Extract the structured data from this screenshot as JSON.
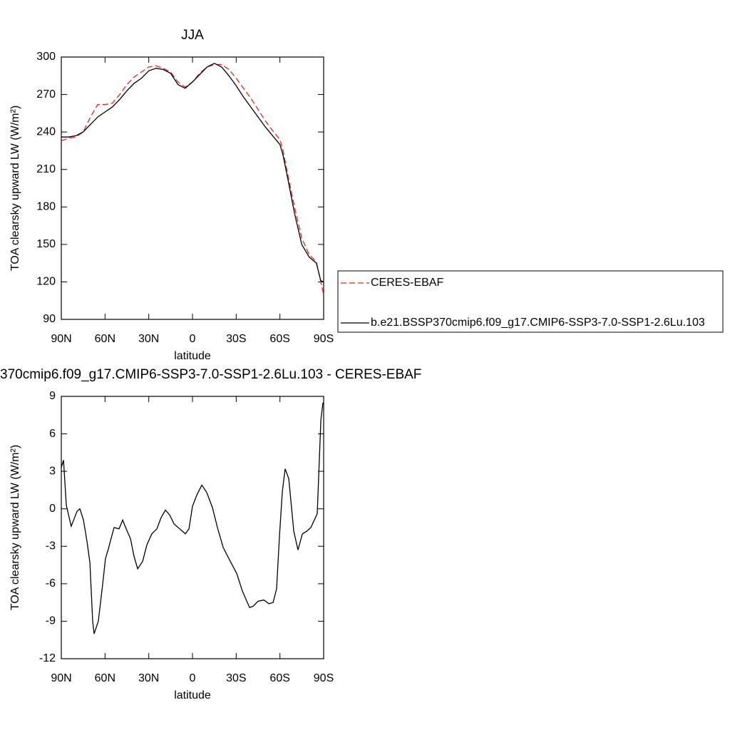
{
  "chart_data": [
    {
      "type": "line",
      "title": "JJA",
      "xlabel": "latitude",
      "ylabel": "TOA clearsky upward LW (W/m²)",
      "x": [
        90,
        85,
        80,
        75,
        70,
        65,
        60,
        55,
        50,
        45,
        40,
        35,
        30,
        25,
        20,
        15,
        10,
        5,
        0,
        -5,
        -10,
        -15,
        -20,
        -25,
        -30,
        -35,
        -40,
        -45,
        -50,
        -55,
        -60,
        -62,
        -65,
        -70,
        -75,
        -80,
        -85,
        -88,
        -90
      ],
      "series": [
        {
          "name": "CERES-EBAF",
          "color": "#e8231f",
          "dashed": true,
          "values": [
            233,
            235,
            236,
            240,
            252,
            262,
            262,
            263,
            270,
            278,
            284,
            288,
            292,
            293,
            291,
            288,
            280,
            276,
            280,
            287,
            292,
            294,
            294,
            290,
            283,
            275,
            267,
            258,
            249,
            241,
            234,
            226,
            208,
            180,
            155,
            142,
            136,
            120,
            110
          ]
        },
        {
          "name": "b.e21.BSSP370cmip6.f09_g17.CMIP6-SSP3-7.0-SSP1-2.6Lu.103",
          "color": "#000000",
          "dashed": false,
          "values": [
            236,
            236,
            237,
            240,
            246,
            252,
            256,
            260,
            266,
            273,
            279,
            283,
            289,
            291,
            290,
            287,
            278,
            275,
            280,
            286,
            292,
            295,
            292,
            285,
            277,
            268,
            260,
            252,
            244,
            237,
            230,
            222,
            205,
            175,
            150,
            140,
            135,
            121,
            120
          ]
        }
      ],
      "xlim": [
        90,
        -90
      ],
      "xticks": [
        {
          "value": 90,
          "label": "90N"
        },
        {
          "value": 60,
          "label": "60N"
        },
        {
          "value": 30,
          "label": "30N"
        },
        0,
        {
          "value": -30,
          "label": "30S"
        },
        {
          "value": -60,
          "label": "60S"
        },
        {
          "value": -90,
          "label": "90S"
        }
      ],
      "ylim": [
        90,
        300
      ],
      "yticks": [
        90,
        120,
        150,
        180,
        210,
        240,
        270,
        300
      ],
      "legend": "outside right"
    },
    {
      "type": "line",
      "title": "370cmip6.f09_g17.CMIP6-SSP3-7.0-SSP1-2.6Lu.103 - CERES-EBAF",
      "xlabel": "latitude",
      "ylabel": "TOA clearsky upward LW (W/m²)",
      "x": [
        90,
        88.5,
        86.6,
        83.2,
        79.2,
        77.3,
        74.8,
        72.4,
        70.4,
        68.5,
        67.5,
        64.6,
        61.6,
        59.7,
        57.7,
        53.8,
        50.4,
        47.9,
        45.5,
        42.5,
        40.1,
        37.6,
        34.2,
        31.3,
        27.9,
        24.4,
        21.5,
        18.6,
        15.6,
        12.7,
        8.8,
        4.9,
        2.4,
        0,
        -3,
        -6.4,
        -9.8,
        -13.7,
        -17.1,
        -21.1,
        -25.5,
        -30.4,
        -34.3,
        -39.2,
        -41.6,
        -45,
        -49,
        -52.4,
        -55.3,
        -57.7,
        -59.7,
        -61.7,
        -63.6,
        -66.1,
        -69.5,
        -72.4,
        -75.4,
        -78.3,
        -81.2,
        -83.2,
        -85.6,
        -88.1,
        -89.5
      ],
      "series": [
        {
          "color": "#000000",
          "dashed": false,
          "values": [
            3.3,
            3.9,
            0.3,
            -1.4,
            -0.2,
            0,
            -0.9,
            -2.6,
            -4.3,
            -9,
            -10,
            -9,
            -6,
            -4,
            -3.2,
            -1.5,
            -1.6,
            -0.9,
            -1.6,
            -2.4,
            -3.8,
            -4.8,
            -4.2,
            -2.9,
            -2,
            -1.6,
            -0.7,
            -0.1,
            -0.5,
            -1.2,
            -1.6,
            -2,
            -1.6,
            0.2,
            1.1,
            1.9,
            1.3,
            0.1,
            -1.5,
            -3.1,
            -4.1,
            -5.2,
            -6.6,
            -7.9,
            -7.8,
            -7.4,
            -7.3,
            -7.6,
            -7.5,
            -6.4,
            -2.1,
            1.4,
            3.2,
            2.4,
            -1.8,
            -3.3,
            -2,
            -1.8,
            -1.5,
            -1,
            -0.4,
            7.1,
            8.5
          ]
        }
      ],
      "xlim": [
        90,
        -90
      ],
      "xticks": [
        {
          "value": 90,
          "label": "90N"
        },
        {
          "value": 60,
          "label": "60N"
        },
        {
          "value": 30,
          "label": "30N"
        },
        0,
        {
          "value": -30,
          "label": "30S"
        },
        {
          "value": -60,
          "label": "60S"
        },
        {
          "value": -90,
          "label": "90S"
        }
      ],
      "ylim": [
        -12,
        9
      ],
      "yticks": [
        -12,
        -9,
        -6,
        -3,
        0,
        3,
        6,
        9
      ]
    }
  ]
}
